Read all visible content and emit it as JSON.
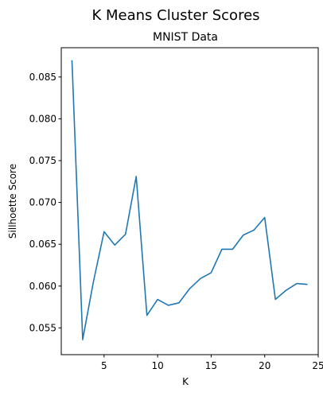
{
  "chart_data": {
    "type": "line",
    "suptitle": "K Means Cluster Scores",
    "title": "MNIST Data",
    "xlabel": "K",
    "ylabel": "Sillhoette Score",
    "xlim": [
      1,
      25
    ],
    "ylim": [
      0.0518,
      0.0885
    ],
    "xticks": [
      5,
      10,
      15,
      20,
      25
    ],
    "yticks": [
      0.055,
      0.06,
      0.065,
      0.07,
      0.075,
      0.08,
      0.085
    ],
    "yticklabels": [
      "0.055",
      "0.060",
      "0.065",
      "0.070",
      "0.075",
      "0.080",
      "0.085"
    ],
    "grid": false,
    "series": [
      {
        "color": "#1f77b4",
        "x": [
          2,
          3,
          4,
          5,
          6,
          7,
          8,
          9,
          10,
          11,
          12,
          13,
          14,
          15,
          16,
          17,
          18,
          19,
          20,
          21,
          22,
          23,
          24
        ],
        "y": [
          0.087,
          0.0536,
          0.0605,
          0.0665,
          0.0649,
          0.0662,
          0.0731,
          0.0565,
          0.0584,
          0.0577,
          0.058,
          0.0597,
          0.0609,
          0.0616,
          0.0644,
          0.0644,
          0.0661,
          0.0667,
          0.0682,
          0.0584,
          0.0595,
          0.0603,
          0.0602
        ]
      }
    ]
  }
}
